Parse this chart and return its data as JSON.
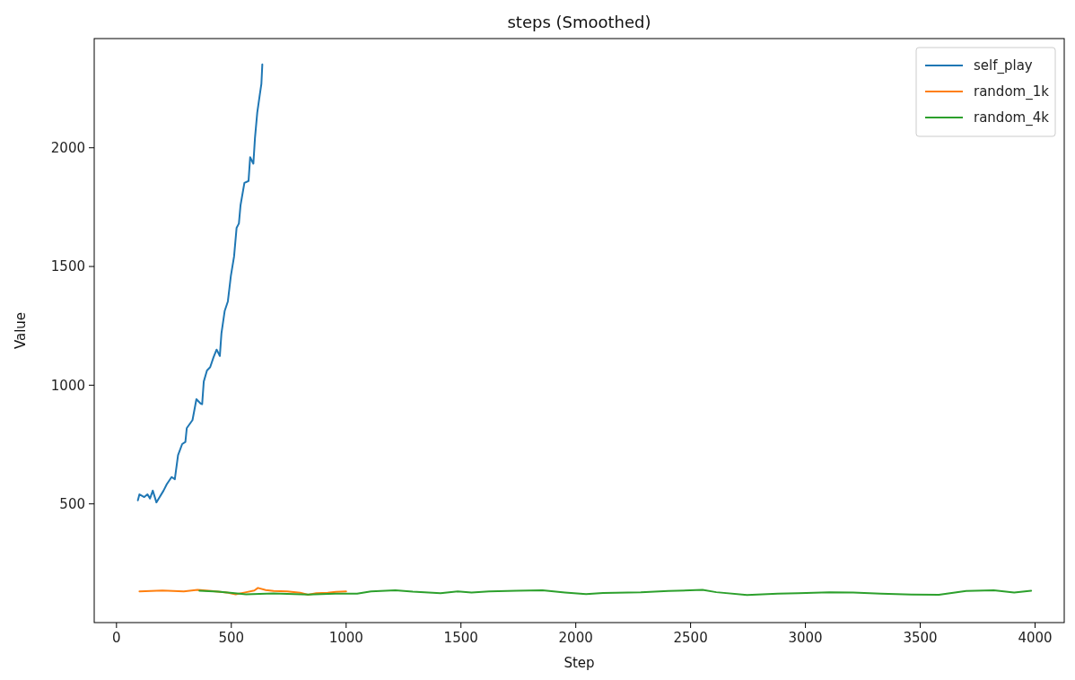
{
  "chart_data": {
    "type": "line",
    "title": "steps (Smoothed)",
    "xlabel": "Step",
    "ylabel": "Value",
    "xlim": [
      -97,
      4127
    ],
    "ylim": [
      0,
      2460
    ],
    "xticks": [
      0,
      500,
      1000,
      1500,
      2000,
      2500,
      3000,
      3500,
      4000
    ],
    "yticks": [
      500,
      1000,
      1500,
      2000
    ],
    "grid": false,
    "legend": "top right",
    "marker": "none",
    "line_style": "solid",
    "series": [
      {
        "name": "self_play",
        "color": "#1f77b4",
        "x": [
          93,
          100,
          121,
          135,
          146,
          158,
          174,
          205,
          219,
          240,
          254,
          268,
          286,
          300,
          306,
          331,
          348,
          366,
          373,
          380,
          394,
          408,
          422,
          436,
          450,
          457,
          471,
          485,
          498,
          512,
          523,
          533,
          540,
          557,
          575,
          582,
          596,
          603,
          613,
          624,
          631,
          635
        ],
        "values": [
          515,
          540,
          529,
          540,
          523,
          556,
          506,
          556,
          583,
          613,
          604,
          705,
          752,
          761,
          819,
          853,
          941,
          923,
          920,
          1015,
          1062,
          1076,
          1116,
          1150,
          1123,
          1218,
          1312,
          1353,
          1460,
          1542,
          1663,
          1681,
          1757,
          1852,
          1860,
          1960,
          1933,
          2041,
          2149,
          2223,
          2270,
          2351
        ]
      },
      {
        "name": "random_1k",
        "color": "#ff7f0e",
        "x": [
          100,
          200,
          293,
          353,
          413,
          480,
          519,
          560,
          600,
          616,
          650,
          684,
          744,
          800,
          834,
          870,
          920,
          955,
          1000
        ],
        "values": [
          131,
          135,
          131,
          138,
          133,
          127,
          119,
          127,
          135,
          146,
          137,
          133,
          131,
          126,
          117,
          124,
          126,
          129,
          131
        ]
      },
      {
        "name": "random_4k",
        "color": "#2ca02c",
        "x": [
          361,
          443,
          564,
          684,
          834,
          953,
          1048,
          1108,
          1214,
          1290,
          1411,
          1486,
          1546,
          1622,
          1742,
          1855,
          1953,
          2045,
          2119,
          2283,
          2403,
          2552,
          2612,
          2746,
          2880,
          2969,
          3104,
          3208,
          3328,
          3462,
          3581,
          3700,
          3820,
          3909,
          3983
        ],
        "values": [
          134,
          130,
          119,
          123,
          118,
          122,
          122,
          131,
          136,
          130,
          124,
          131,
          127,
          131,
          134,
          136,
          127,
          120,
          125,
          128,
          133,
          138,
          128,
          116,
          122,
          124,
          128,
          127,
          122,
          118,
          117,
          133,
          136,
          127,
          134
        ]
      }
    ]
  }
}
